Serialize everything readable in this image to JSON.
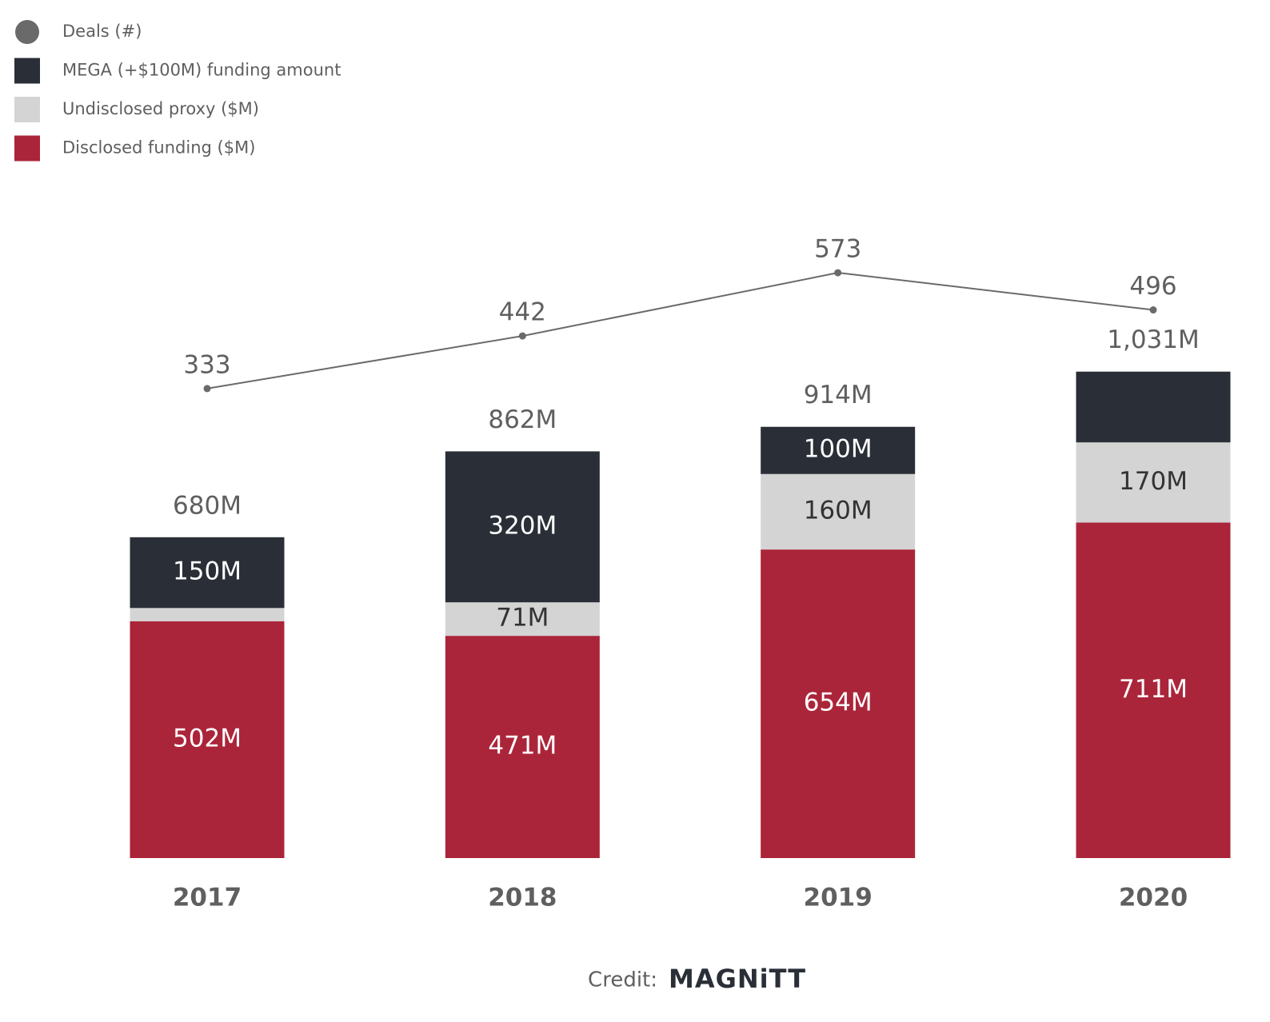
{
  "chart_data": {
    "type": "stacked-bar-line",
    "categories": [
      "2017",
      "2018",
      "2019",
      "2020"
    ],
    "series": [
      {
        "name": "Disclosed funding ($M)",
        "color": "#ab253a",
        "values": [
          502,
          471,
          654,
          711
        ],
        "value_labels": [
          "502M",
          "471M",
          "654M",
          "711M"
        ]
      },
      {
        "name": "Undisclosed proxy ($M)",
        "color": "#d4d4d4",
        "values": [
          28,
          71,
          160,
          170
        ],
        "value_labels": [
          null,
          "71M",
          "160M",
          "170M"
        ]
      },
      {
        "name": "MEGA (+$100M) funding amount",
        "color": "#2a2f37",
        "values": [
          150,
          320,
          100,
          150
        ],
        "value_labels": [
          "150M",
          "320M",
          "100M",
          null
        ]
      },
      {
        "name": "Deals (#)",
        "color": "#6a6a6a",
        "type": "line",
        "axis": "y2",
        "values": [
          333,
          442,
          573,
          496
        ]
      }
    ],
    "totals": {
      "values": [
        680,
        862,
        914,
        1031
      ],
      "value_labels": [
        "680M",
        "862M",
        "914M",
        "1,031M"
      ]
    },
    "ylim": [
      0,
      1800
    ],
    "y2lim": [
      -640,
      1120
    ],
    "legend": "top-left",
    "credit": "Credit:",
    "logo": "MAGNiTT"
  }
}
